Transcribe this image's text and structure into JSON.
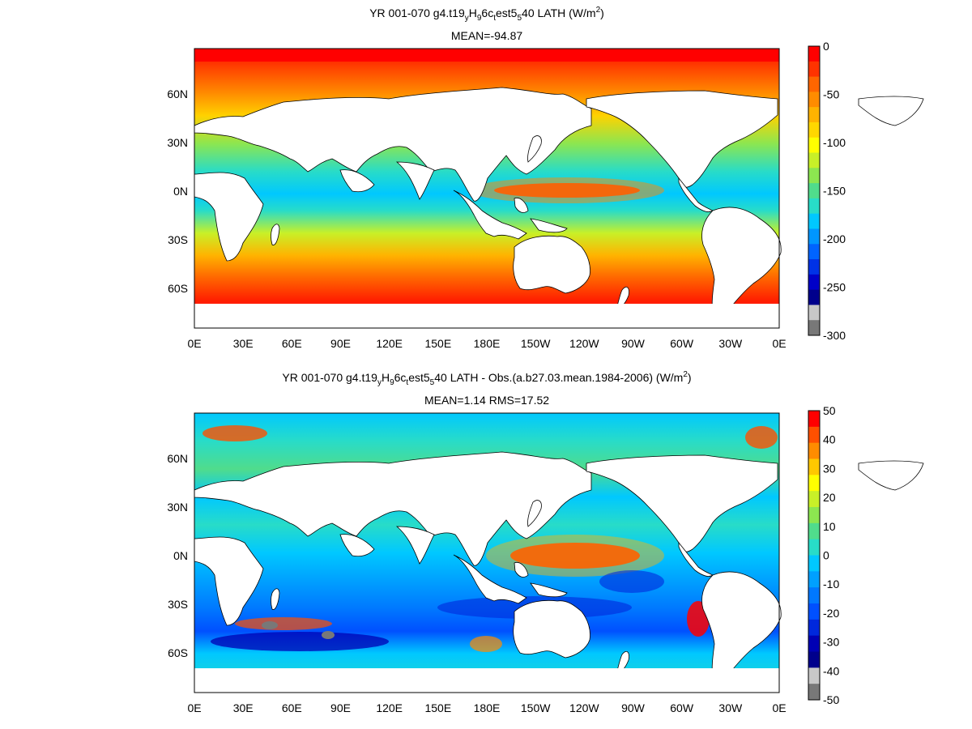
{
  "panels": [
    {
      "title_parts": [
        "YR 001-070 g4.t19",
        "y",
        "H",
        "9",
        "6c",
        "t",
        "est5",
        "5",
        "40  LATH (W/m",
        "2",
        ")"
      ],
      "subtitle": "MEAN=-94.87",
      "lat_labels": [
        "60N",
        "30N",
        "0N",
        "30S",
        "60S"
      ],
      "lon_labels": [
        "0E",
        "30E",
        "60E",
        "90E",
        "120E",
        "150E",
        "180E",
        "150W",
        "120W",
        "90W",
        "60W",
        "30W",
        "0E"
      ],
      "colorbar_labels": [
        "0",
        "-50",
        "-100",
        "-150",
        "-200",
        "-250",
        "-300"
      ],
      "colorbar_colors": [
        "#ff0000",
        "#ff3300",
        "#ff6600",
        "#ff8c00",
        "#ffb300",
        "#ffd700",
        "#ffff00",
        "#c8f028",
        "#8ce650",
        "#50dc8c",
        "#28dcc8",
        "#00c8ff",
        "#0096ff",
        "#0064ff",
        "#0032e6",
        "#0000c8",
        "#00008c",
        "#c8c8c8",
        "#787878"
      ]
    },
    {
      "title_parts": [
        "YR 001-070 g4.t19",
        "y",
        "H",
        "9",
        "6c",
        "t",
        "est5",
        "5",
        "40 LATH - Obs.(a.b27.03.mean.1984-2006) (W/m",
        "2",
        ")"
      ],
      "subtitle": "MEAN=1.14 RMS=17.52",
      "lat_labels": [
        "60N",
        "30N",
        "0N",
        "30S",
        "60S"
      ],
      "lon_labels": [
        "0E",
        "30E",
        "60E",
        "90E",
        "120E",
        "150E",
        "180E",
        "150W",
        "120W",
        "90W",
        "60W",
        "30W",
        "0E"
      ],
      "colorbar_labels": [
        "50",
        "40",
        "30",
        "20",
        "10",
        "0",
        "-10",
        "-20",
        "-30",
        "-40",
        "-50"
      ],
      "colorbar_colors": [
        "#ff0000",
        "#ff5000",
        "#ff8c00",
        "#ffc800",
        "#ffff00",
        "#c8f028",
        "#8ce650",
        "#50dc8c",
        "#28dcc8",
        "#00c8ff",
        "#00a0ff",
        "#0078ff",
        "#0050ff",
        "#0028dc",
        "#0000b4",
        "#00008c",
        "#c8c8c8",
        "#787878"
      ]
    }
  ]
}
